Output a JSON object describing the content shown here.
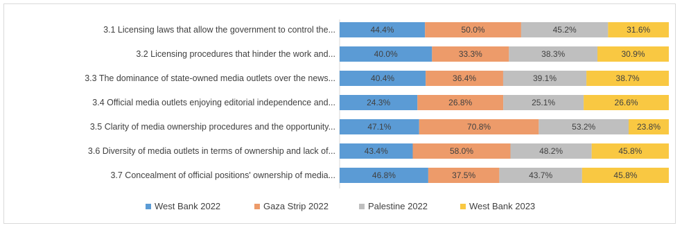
{
  "chart_data": {
    "type": "bar",
    "orientation": "horizontal",
    "stacked": true,
    "categories": [
      "3.1 Licensing laws that allow the government to control the...",
      "3.2 Licensing procedures that hinder the work and...",
      "3.3 The dominance of state-owned media outlets over the news...",
      "3.4 Official media outlets enjoying editorial independence and...",
      "3.5 Clarity of media ownership procedures and the opportunity...",
      "3.6 Diversity of media outlets in terms of ownership and lack of...",
      "3.7 Concealment of official positions' ownership of media..."
    ],
    "series": [
      {
        "name": "West Bank 2022",
        "color": "#5b9bd5",
        "values": [
          44.4,
          40.0,
          40.4,
          24.3,
          47.1,
          43.4,
          46.8
        ],
        "labels": [
          "44.4%",
          "40.0%",
          "40.4%",
          "24.3%",
          "47.1%",
          "43.4%",
          "46.8%"
        ]
      },
      {
        "name": "Gaza Strip 2022",
        "color": "#ed9b6a",
        "values": [
          50.0,
          33.3,
          36.4,
          26.8,
          70.8,
          58.0,
          37.5
        ],
        "labels": [
          "50.0%",
          "33.3%",
          "36.4%",
          "26.8%",
          "70.8%",
          "58.0%",
          "37.5%"
        ]
      },
      {
        "name": "Palestine 2022",
        "color": "#bfbfbf",
        "values": [
          45.2,
          38.3,
          39.1,
          25.1,
          53.2,
          48.2,
          43.7
        ],
        "labels": [
          "45.2%",
          "38.3%",
          "39.1%",
          "25.1%",
          "53.2%",
          "48.2%",
          "43.7%"
        ]
      },
      {
        "name": "West Bank 2023",
        "color": "#f9c842",
        "values": [
          31.6,
          30.9,
          38.7,
          26.6,
          23.8,
          45.8,
          45.8
        ],
        "labels": [
          "31.6%",
          "30.9%",
          "38.7%",
          "26.6%",
          "23.8%",
          "45.8%",
          "45.8%"
        ]
      }
    ],
    "legend_position": "bottom",
    "grid": false
  }
}
